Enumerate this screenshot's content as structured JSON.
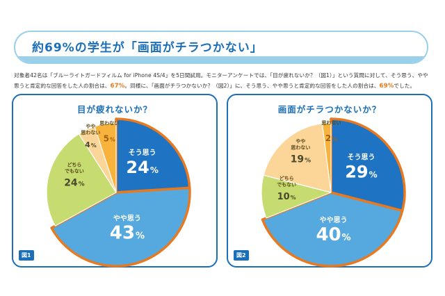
{
  "header": {
    "title": "約69%の学生が「画面がチラつかない」"
  },
  "description": {
    "part1": "対象者42名は「ブルーライトガードフィルム for iPhone 4S/4」を5日間試用。モニターアンケートでは、「目が疲れないか？（図1）」という質問に対して、そう思う、やや思うと肯定的な回答をした人の割合は、",
    "highlight1": "67%",
    "part2": "。同様に、「画面がチラつかないか？（図2）」に、そう思う、やや思うと肯定的な回答をした人の割合は、",
    "highlight2": "69%",
    "part3": "でした。"
  },
  "colors": {
    "accent": "#1b6fb8",
    "highlight_outline": "#e8791f",
    "soo_omou": "#1f73c3",
    "yaya_omou": "#55a9de",
    "dochira": "#c6dc70",
    "yaya_omowanai": "#fcd599",
    "omowanai": "#f8b33d"
  },
  "chart_data": [
    {
      "type": "pie",
      "title": "目が疲れないか？",
      "figure_label": "図1",
      "slices": [
        {
          "label": "そう思う",
          "value": 24,
          "display": "24",
          "unit": "%",
          "color": "#1f73c3"
        },
        {
          "label": "やや思う",
          "value": 43,
          "display": "43",
          "unit": "%",
          "color": "#55a9de"
        },
        {
          "label": "どちらでもない",
          "value": 24,
          "display": "24",
          "unit": "%",
          "color": "#c6dc70"
        },
        {
          "label": "やや思わない",
          "value": 4,
          "display": "4",
          "unit": "%",
          "color": "#fcd599"
        },
        {
          "label": "思わない",
          "value": 5,
          "display": "5",
          "unit": "%",
          "color": "#f8b33d"
        }
      ],
      "highlighted_slices": [
        "そう思う",
        "やや思う"
      ],
      "highlight_total": 67
    },
    {
      "type": "pie",
      "title": "画面がチラつかないか？",
      "figure_label": "図2",
      "slices": [
        {
          "label": "そう思う",
          "value": 29,
          "display": "29",
          "unit": "%",
          "color": "#1f73c3"
        },
        {
          "label": "やや思う",
          "value": 40,
          "display": "40",
          "unit": "%",
          "color": "#55a9de"
        },
        {
          "label": "どちらでもない",
          "value": 10,
          "display": "10",
          "unit": "%",
          "color": "#c6dc70"
        },
        {
          "label": "やや思わない",
          "value": 19,
          "display": "19",
          "unit": "%",
          "color": "#fcd599"
        },
        {
          "label": "思わない",
          "value": 2,
          "display": "2",
          "unit": "%",
          "color": "#f8b33d"
        }
      ],
      "highlighted_slices": [
        "そう思う",
        "やや思う"
      ],
      "highlight_total": 69
    }
  ]
}
